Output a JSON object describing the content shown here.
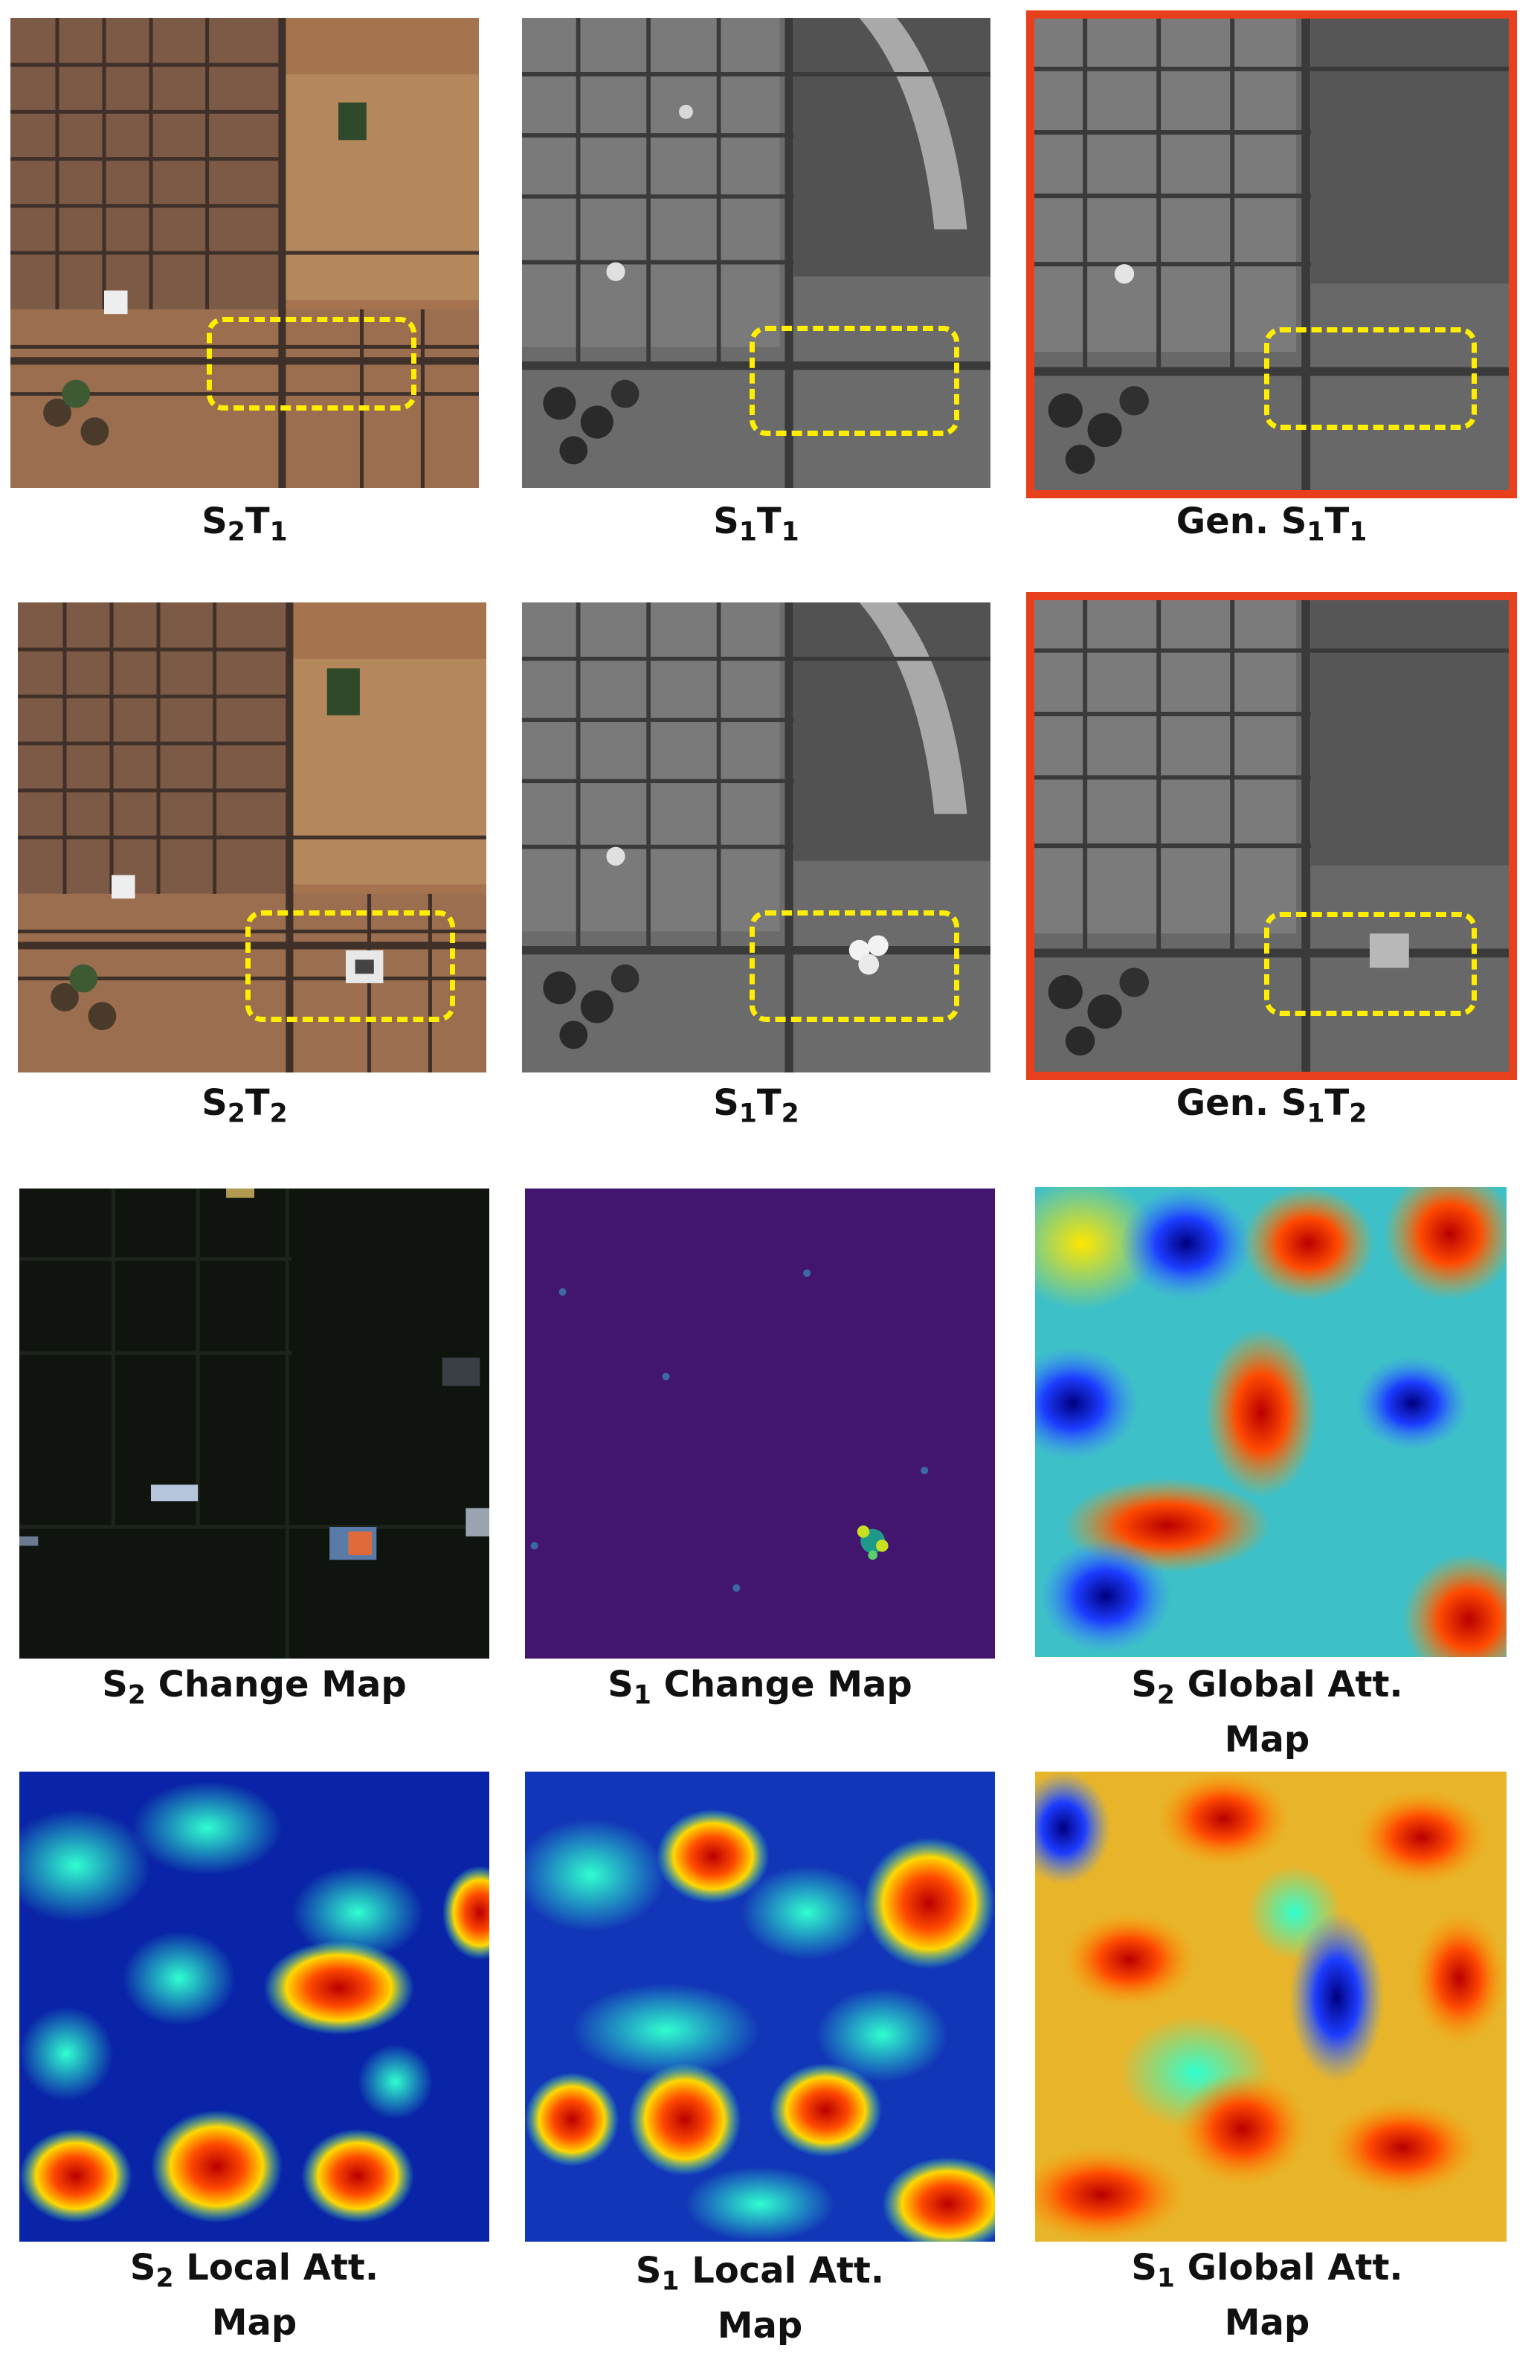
{
  "panels": [
    {
      "kind": "rgb"
    },
    {
      "kind": "sar"
    },
    {
      "kind": "gen_sar",
      "highlighted": true
    },
    {
      "kind": "rgb"
    },
    {
      "kind": "sar"
    },
    {
      "kind": "gen_sar",
      "highlighted": true
    },
    {
      "kind": "change_rgb"
    },
    {
      "kind": "change_viridis"
    },
    {
      "kind": "heatmap"
    },
    {
      "kind": "heatmap"
    },
    {
      "kind": "heatmap"
    },
    {
      "kind": "heatmap"
    }
  ],
  "captions": {
    "r1c1": {
      "a": "S",
      "b": "2",
      "c": "T",
      "d": "1"
    },
    "r1c2": {
      "a": "S",
      "b": "1",
      "c": "T",
      "d": "1"
    },
    "r1c3": {
      "pre": "Gen. S",
      "b": "1",
      "c": "T",
      "d": "1"
    },
    "r2c1": {
      "a": "S",
      "b": "2",
      "c": "T",
      "d": "2"
    },
    "r2c2": {
      "a": "S",
      "b": "1",
      "c": "T",
      "d": "2"
    },
    "r2c3": {
      "pre": "Gen. S",
      "b": "1",
      "c": "T",
      "d": "2"
    },
    "r3c1": {
      "a": "S",
      "b": "2",
      "rest": " Change Map"
    },
    "r3c2": {
      "a": "S",
      "b": "1",
      "rest": " Change Map"
    },
    "r3c3": {
      "a": "S",
      "b": "2",
      "rest": " Global Att.",
      "line2": "Map"
    },
    "r4c1": {
      "a": "S",
      "b": "2",
      "rest": " Local Att.",
      "line2": "Map"
    },
    "r4c2": {
      "a": "S",
      "b": "1",
      "rest": " Local Att.",
      "line2": "Map"
    },
    "r4c3": {
      "a": "S",
      "b": "1",
      "rest": " Global Att.",
      "line2": "Map"
    }
  },
  "colors": {
    "highlight_frame": "#e8401c",
    "roi_dash": "#ffee00"
  }
}
